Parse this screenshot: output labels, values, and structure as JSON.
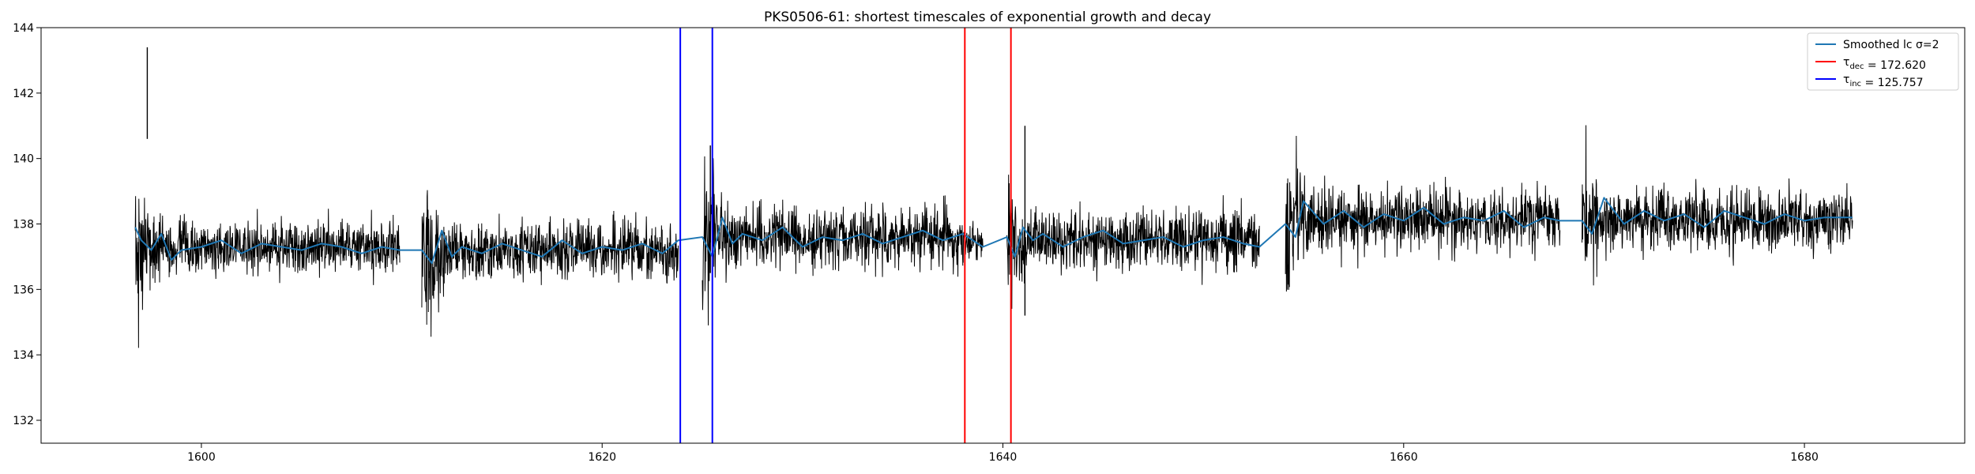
{
  "chart_data": {
    "type": "line",
    "title": "PKS0506-61: shortest timescales of exponential growth and decay",
    "xlabel": "",
    "ylabel": "",
    "xlim": [
      1592,
      1688
    ],
    "ylim": [
      131.3,
      144
    ],
    "xticks": [
      1600,
      1620,
      1640,
      1660,
      1680
    ],
    "yticks": [
      132,
      134,
      136,
      138,
      140,
      142,
      144
    ],
    "grid": false,
    "legend": {
      "placement": "top-right",
      "entries": [
        {
          "prefix": "Smoothed lc ",
          "symbol": "σ",
          "sub": "",
          "suffix": "=2",
          "color": "#1f77b4"
        },
        {
          "prefix": "",
          "symbol": "τ",
          "sub": "dec",
          "suffix": " = 172.620",
          "color": "#ff0000"
        },
        {
          "prefix": "",
          "symbol": "τ",
          "sub": "inc",
          "suffix": " = 125.757",
          "color": "#0000ff"
        }
      ]
    },
    "segments": [
      {
        "x_start": 1596.7,
        "x_end": 1609.9,
        "mean": 137.3,
        "amplitude": 0.75,
        "initial_amplitude": 2.3,
        "initial_duration": 1.2
      },
      {
        "x_start": 1611.0,
        "x_end": 1623.8,
        "mean": 137.2,
        "amplitude": 0.75,
        "initial_amplitude": 2.4,
        "initial_duration": 1.2
      },
      {
        "x_start": 1625.0,
        "x_end": 1638.0,
        "mean": 137.6,
        "amplitude": 0.85,
        "initial_amplitude": 2.2,
        "initial_duration": 1.5
      },
      {
        "x_start": 1638.0,
        "x_end": 1639.0,
        "mean": 137.4,
        "amplitude": 0.55,
        "initial_amplitude": 0.55,
        "initial_duration": 0
      },
      {
        "x_start": 1640.2,
        "x_end": 1652.8,
        "mean": 137.5,
        "amplitude": 0.85,
        "initial_amplitude": 2.0,
        "initial_duration": 1.2
      },
      {
        "x_start": 1654.1,
        "x_end": 1667.8,
        "mean": 138.1,
        "amplitude": 0.9,
        "initial_amplitude": 2.1,
        "initial_duration": 1.2
      },
      {
        "x_start": 1668.9,
        "x_end": 1682.4,
        "mean": 138.1,
        "amplitude": 0.85,
        "initial_amplitude": 2.2,
        "initial_duration": 1.2
      }
    ],
    "spikes": [
      {
        "x": 1597.3,
        "y_low": 140.6,
        "y_high": 143.4
      },
      {
        "x": 1641.1,
        "y_low": 135.2,
        "y_high": 141.0
      },
      {
        "x": 1625.4,
        "y_low": 136.5,
        "y_high": 140.4
      }
    ],
    "smoothed_series": {
      "name": "Smoothed lc σ=2",
      "x": [
        1596.7,
        1597.0,
        1597.5,
        1598.0,
        1598.5,
        1599.0,
        1600,
        1601,
        1602,
        1603,
        1604,
        1605,
        1606,
        1607,
        1608,
        1609,
        1609.9,
        1611.0,
        1611.5,
        1612.0,
        1612.5,
        1613,
        1614,
        1615,
        1616,
        1617,
        1618,
        1619,
        1620,
        1621,
        1622,
        1623,
        1623.8,
        1625.0,
        1625.5,
        1626.0,
        1626.5,
        1627,
        1628,
        1629,
        1630,
        1631,
        1632,
        1633,
        1634,
        1635,
        1636,
        1637,
        1638,
        1639.0,
        1640.2,
        1640.6,
        1641.0,
        1641.5,
        1642,
        1643,
        1644,
        1645,
        1646,
        1647,
        1648,
        1649,
        1650,
        1651,
        1652,
        1652.8,
        1654.1,
        1654.6,
        1655,
        1656,
        1657,
        1658,
        1659,
        1660,
        1661,
        1662,
        1663,
        1664,
        1665,
        1666,
        1667,
        1667.8,
        1668.9,
        1669.4,
        1670,
        1671,
        1672,
        1673,
        1674,
        1675,
        1676,
        1677,
        1678,
        1679,
        1680,
        1681,
        1682.4
      ],
      "y": [
        137.9,
        137.5,
        137.2,
        137.7,
        136.9,
        137.2,
        137.3,
        137.5,
        137.1,
        137.4,
        137.3,
        137.2,
        137.4,
        137.3,
        137.1,
        137.3,
        137.2,
        137.2,
        136.8,
        137.8,
        137.0,
        137.3,
        137.1,
        137.4,
        137.2,
        137.0,
        137.5,
        137.1,
        137.3,
        137.2,
        137.4,
        137.1,
        137.5,
        137.6,
        137.0,
        138.2,
        137.4,
        137.7,
        137.5,
        137.9,
        137.3,
        137.6,
        137.5,
        137.7,
        137.4,
        137.6,
        137.8,
        137.5,
        137.7,
        137.3,
        137.6,
        137.0,
        137.9,
        137.5,
        137.7,
        137.3,
        137.6,
        137.8,
        137.4,
        137.5,
        137.6,
        137.3,
        137.5,
        137.6,
        137.4,
        137.3,
        138.0,
        137.6,
        138.7,
        138.0,
        138.4,
        137.9,
        138.3,
        138.1,
        138.5,
        138.0,
        138.2,
        138.1,
        138.4,
        137.9,
        138.2,
        138.1,
        138.1,
        137.7,
        138.8,
        138.0,
        138.4,
        138.1,
        138.3,
        137.9,
        138.4,
        138.2,
        138.0,
        138.3,
        138.1,
        138.2,
        138.2
      ]
    },
    "vlines": [
      {
        "x": 1623.9,
        "color": "#0000ff",
        "series": "τ inc"
      },
      {
        "x": 1625.5,
        "color": "#0000ff",
        "series": "τ inc"
      },
      {
        "x": 1638.1,
        "color": "#ff0000",
        "series": "τ dec"
      },
      {
        "x": 1640.4,
        "color": "#ff0000",
        "series": "τ dec"
      }
    ],
    "colors": {
      "raw_lc": "#000000",
      "smoothed": "#1f77b4",
      "tau_dec": "#ff0000",
      "tau_inc": "#0000ff"
    }
  }
}
